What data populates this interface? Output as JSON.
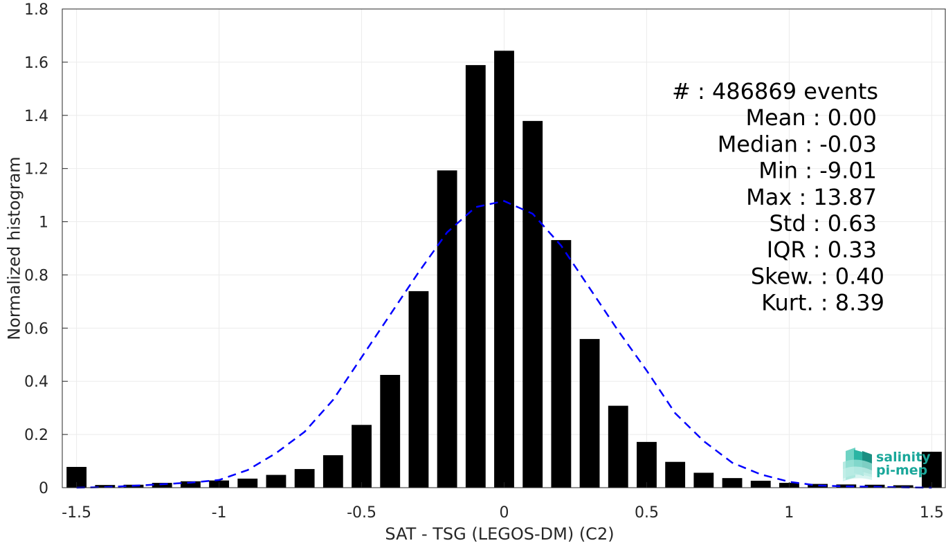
{
  "chart_data": {
    "type": "bar",
    "xlabel": "SAT - TSG (LEGOS-DM) (C2)",
    "ylabel": "Normalized histogram",
    "xlim": [
      -1.55,
      1.55
    ],
    "ylim": [
      0,
      1.8
    ],
    "xticks": [
      -1.5,
      -1,
      -0.5,
      0,
      0.5,
      1,
      1.5
    ],
    "xtick_labels": [
      "-1.5",
      "-1",
      "-0.5",
      "0",
      "0.5",
      "1",
      "1.5"
    ],
    "yticks": [
      0,
      0.2,
      0.4,
      0.6,
      0.8,
      1,
      1.2,
      1.4,
      1.6,
      1.8
    ],
    "ytick_labels": [
      "0",
      "0.2",
      "0.4",
      "0.6",
      "0.8",
      "1",
      "1.2",
      "1.4",
      "1.6",
      "1.8"
    ],
    "grid": true,
    "bar_width": 0.07,
    "bars": {
      "x": [
        -1.5,
        -1.4,
        -1.3,
        -1.2,
        -1.1,
        -1.0,
        -0.9,
        -0.8,
        -0.7,
        -0.6,
        -0.5,
        -0.4,
        -0.3,
        -0.2,
        -0.1,
        0.0,
        0.1,
        0.2,
        0.3,
        0.4,
        0.5,
        0.6,
        0.7,
        0.8,
        0.9,
        1.0,
        1.1,
        1.2,
        1.3,
        1.4,
        1.5
      ],
      "values": [
        0.078,
        0.01,
        0.011,
        0.018,
        0.024,
        0.027,
        0.034,
        0.048,
        0.07,
        0.122,
        0.236,
        0.424,
        0.739,
        1.193,
        1.589,
        1.643,
        1.379,
        0.931,
        0.559,
        0.308,
        0.172,
        0.097,
        0.056,
        0.036,
        0.026,
        0.018,
        0.014,
        0.012,
        0.011,
        0.009,
        0.135
      ]
    },
    "fit_curve": {
      "style": "dashed",
      "color": "#0000ff",
      "x": [
        -1.5,
        -1.4,
        -1.3,
        -1.2,
        -1.1,
        -1.0,
        -0.9,
        -0.8,
        -0.7,
        -0.6,
        -0.5,
        -0.4,
        -0.3,
        -0.2,
        -0.1,
        0.0,
        0.1,
        0.2,
        0.3,
        0.4,
        0.5,
        0.6,
        0.7,
        0.8,
        0.9,
        1.0,
        1.1,
        1.2,
        1.3,
        1.4,
        1.5
      ],
      "values": [
        0.0,
        0.002,
        0.007,
        0.013,
        0.019,
        0.029,
        0.066,
        0.13,
        0.21,
        0.33,
        0.49,
        0.65,
        0.81,
        0.96,
        1.055,
        1.078,
        1.03,
        0.91,
        0.75,
        0.59,
        0.44,
        0.28,
        0.175,
        0.094,
        0.05,
        0.022,
        0.008,
        0.005,
        0.003,
        0.001,
        0.0
      ]
    },
    "colors": {
      "bars": "#000000",
      "fit": "#0000ff",
      "grid": "#ebebeb",
      "axis": "#262626"
    }
  },
  "stats": [
    {
      "label": "#  : 486869 events",
      "align": "start"
    },
    {
      "label": "Mean : 0.00",
      "align": "end"
    },
    {
      "label": "Median : -0.03",
      "align": "end"
    },
    {
      "label": "Min : -9.01",
      "align": "end"
    },
    {
      "label": "Max : 13.87",
      "align": "end"
    },
    {
      "label": "Std : 0.63",
      "align": "end"
    },
    {
      "label": "IQR : 0.33",
      "align": "end"
    },
    {
      "label": "Skew. : 0.40",
      "align": "end"
    },
    {
      "label": "Kurt. : 8.39",
      "align": "end"
    }
  ],
  "logo": {
    "line1": "salinity",
    "line2": "pi-mep",
    "color": "#1aa79a"
  }
}
